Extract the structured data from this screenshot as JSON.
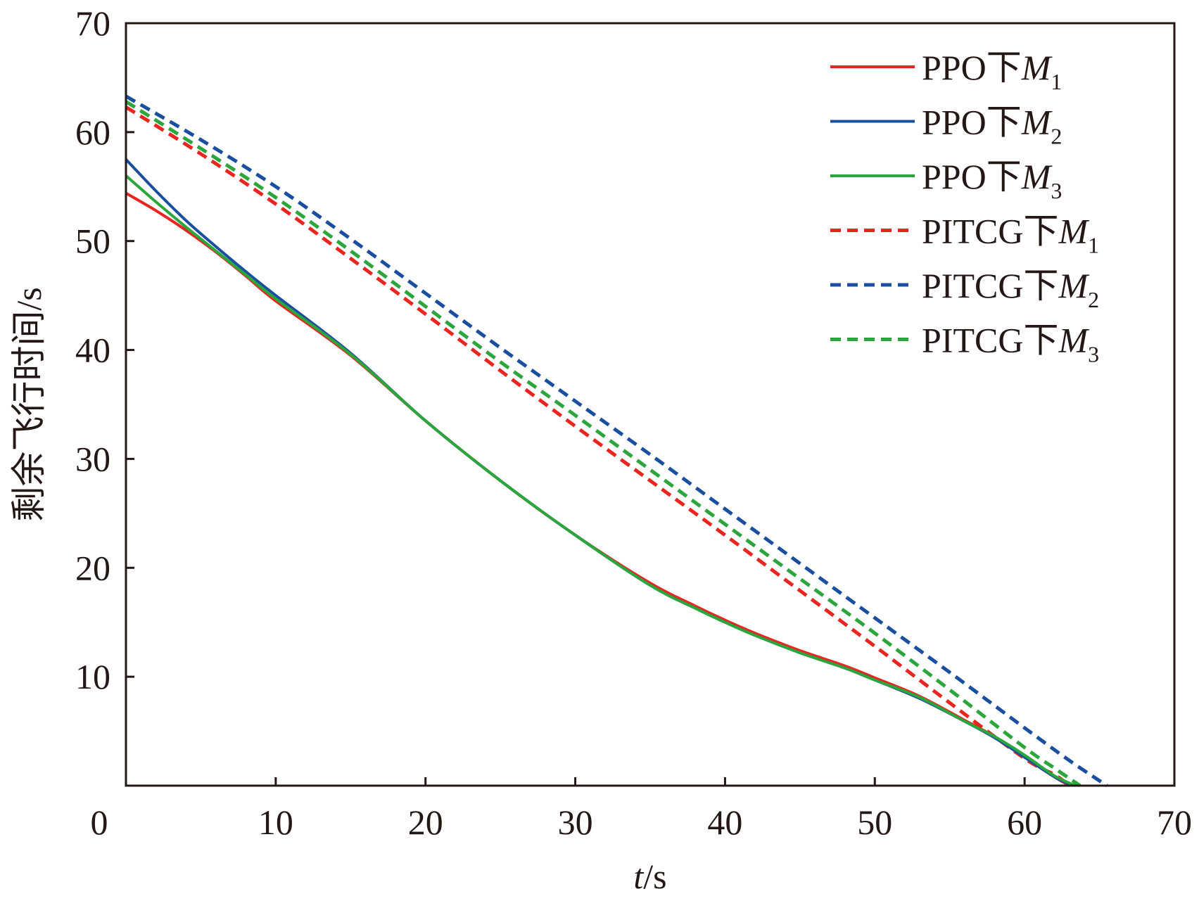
{
  "chart_data": {
    "type": "line",
    "xlabel_var": "t",
    "xlabel_unit": "/s",
    "ylabel": "剩余飞行时间/s",
    "xlim": [
      0,
      70
    ],
    "ylim": [
      0,
      70
    ],
    "xticks": [
      0,
      10,
      20,
      30,
      40,
      50,
      60,
      70
    ],
    "yticks": [
      10,
      20,
      30,
      40,
      50,
      60,
      70
    ],
    "grid": false,
    "legend_position": "top-right",
    "series": [
      {
        "name": "PPO下M1",
        "prefix": "PPO下",
        "symbol": "M",
        "sub": "1",
        "color": "#e8251f",
        "style": "solid",
        "x": [
          0,
          2,
          4,
          6,
          8,
          10,
          15,
          20,
          25,
          30,
          35,
          38,
          40,
          42,
          45,
          48,
          50,
          53,
          56,
          58,
          60,
          62,
          63
        ],
        "y": [
          54.4,
          52.8,
          51,
          49,
          46.8,
          44.5,
          39.5,
          33.5,
          28,
          23,
          18.6,
          16.5,
          15.2,
          14,
          12.4,
          11,
          9.9,
          8.2,
          6,
          4.5,
          2.7,
          0.8,
          0
        ]
      },
      {
        "name": "PPO下M2",
        "prefix": "PPO下",
        "symbol": "M",
        "sub": "2",
        "color": "#1a4fa0",
        "style": "solid",
        "x": [
          0,
          2,
          4,
          6,
          8,
          10,
          15,
          20,
          25,
          30,
          35,
          38,
          40,
          42,
          45,
          48,
          50,
          53,
          56,
          58,
          60,
          62,
          63.2
        ],
        "y": [
          57.5,
          54.6,
          51.9,
          49.5,
          47.2,
          45,
          39.7,
          33.5,
          28,
          23,
          18.4,
          16.3,
          15,
          13.8,
          12.2,
          10.8,
          9.7,
          8,
          5.9,
          4.4,
          2.6,
          0.8,
          0
        ]
      },
      {
        "name": "PPO下M3",
        "prefix": "PPO下",
        "symbol": "M",
        "sub": "3",
        "color": "#2ca63c",
        "style": "solid",
        "x": [
          0,
          2,
          4,
          6,
          8,
          10,
          15,
          20,
          25,
          30,
          35,
          38,
          40,
          42,
          45,
          48,
          50,
          53,
          56,
          58,
          60,
          62,
          63.4
        ],
        "y": [
          56,
          53.6,
          51.3,
          49.1,
          46.9,
          44.7,
          39.6,
          33.5,
          28,
          23,
          18.4,
          16.3,
          15,
          13.8,
          12.2,
          10.8,
          9.7,
          8.1,
          5.9,
          4.5,
          2.8,
          0.9,
          0
        ]
      },
      {
        "name": "PITCG下M1",
        "prefix": "PITCG下",
        "symbol": "M",
        "sub": "1",
        "color": "#e8251f",
        "style": "dashed",
        "x": [
          0,
          5,
          10,
          15,
          20,
          25,
          30,
          35,
          40,
          45,
          50,
          55,
          60,
          62,
          63
        ],
        "y": [
          62.3,
          58,
          53.4,
          48.4,
          43.3,
          38.1,
          33,
          28,
          23,
          17.9,
          12.8,
          7.6,
          2.5,
          1,
          0
        ]
      },
      {
        "name": "PITCG下M2",
        "prefix": "PITCG下",
        "symbol": "M",
        "sub": "2",
        "color": "#1a4fa0",
        "style": "dashed",
        "x": [
          0,
          5,
          10,
          15,
          20,
          25,
          30,
          35,
          40,
          45,
          50,
          55,
          60,
          63,
          65.5
        ],
        "y": [
          63.3,
          59.3,
          55,
          50.2,
          45.2,
          40.2,
          35.3,
          30.4,
          25.4,
          20.4,
          15.4,
          10.4,
          5.3,
          2.3,
          0
        ]
      },
      {
        "name": "PITCG下M3",
        "prefix": "PITCG下",
        "symbol": "M",
        "sub": "3",
        "color": "#2ca63c",
        "style": "dashed",
        "x": [
          0,
          5,
          10,
          15,
          20,
          25,
          30,
          35,
          40,
          45,
          50,
          55,
          60,
          62,
          63.7
        ],
        "y": [
          62.8,
          58.5,
          54,
          49.1,
          44,
          38.9,
          34,
          29,
          24,
          19,
          14,
          8.8,
          3.5,
          1.6,
          0
        ]
      }
    ]
  }
}
